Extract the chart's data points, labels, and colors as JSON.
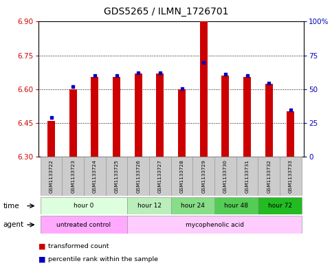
{
  "title": "GDS5265 / ILMN_1726701",
  "samples": [
    "GSM1133722",
    "GSM1133723",
    "GSM1133724",
    "GSM1133725",
    "GSM1133726",
    "GSM1133727",
    "GSM1133728",
    "GSM1133729",
    "GSM1133730",
    "GSM1133731",
    "GSM1133732",
    "GSM1133733"
  ],
  "bar_bottom": 6.3,
  "red_tops": [
    6.46,
    6.6,
    6.655,
    6.655,
    6.668,
    6.668,
    6.6,
    6.91,
    6.66,
    6.655,
    6.622,
    6.5
  ],
  "blue_vals": [
    6.475,
    6.61,
    6.66,
    6.66,
    6.673,
    6.673,
    6.603,
    6.718,
    6.665,
    6.66,
    6.627,
    6.508
  ],
  "ylim_left": [
    6.3,
    6.9
  ],
  "yticks_left": [
    6.3,
    6.45,
    6.6,
    6.75,
    6.9
  ],
  "yticks_right": [
    0,
    25,
    50,
    75,
    100
  ],
  "ytick_right_labels": [
    "0",
    "25",
    "50",
    "75",
    "100%"
  ],
  "bar_color": "#cc0000",
  "blue_color": "#0000bb",
  "grid_color": "#000000",
  "time_groups": [
    {
      "label": "hour 0",
      "start": 0,
      "end": 3,
      "color": "#ddffdd"
    },
    {
      "label": "hour 12",
      "start": 4,
      "end": 5,
      "color": "#bbeebb"
    },
    {
      "label": "hour 24",
      "start": 6,
      "end": 7,
      "color": "#88dd88"
    },
    {
      "label": "hour 48",
      "start": 8,
      "end": 9,
      "color": "#55cc55"
    },
    {
      "label": "hour 72",
      "start": 10,
      "end": 11,
      "color": "#22bb22"
    }
  ],
  "agent_groups": [
    {
      "label": "untreated control",
      "start": 0,
      "end": 3,
      "color": "#ffaaff"
    },
    {
      "label": "mycophenolic acid",
      "start": 4,
      "end": 11,
      "color": "#ffccff"
    }
  ],
  "legend_items": [
    {
      "label": "transformed count",
      "color": "#cc0000"
    },
    {
      "label": "percentile rank within the sample",
      "color": "#0000bb"
    }
  ],
  "bar_width": 0.35,
  "tick_fontsize": 7.5,
  "title_fontsize": 10,
  "plot_bgcolor": "#ffffff",
  "axes_bgcolor": "#ffffff",
  "time_label": "time",
  "agent_label": "agent"
}
